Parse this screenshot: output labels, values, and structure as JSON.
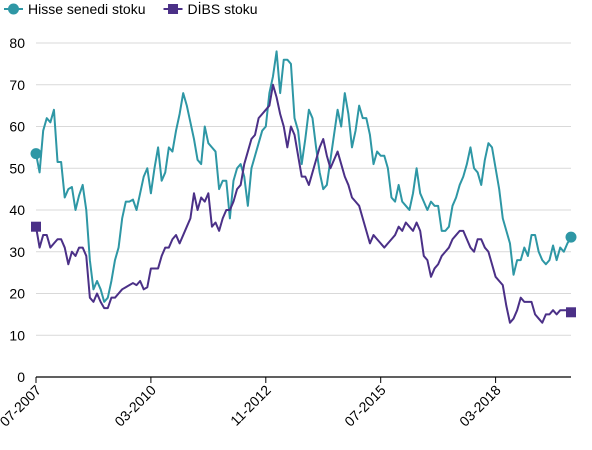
{
  "chart_data": {
    "type": "line",
    "title": "",
    "xlabel": "",
    "ylabel": "",
    "ylim": [
      0,
      80
    ],
    "yticks": [
      0,
      10,
      20,
      30,
      40,
      50,
      60,
      70,
      80
    ],
    "grid": true,
    "legend": "top-left",
    "x_tick_labels": [
      "07-2007",
      "03-2010",
      "11-2012",
      "07-2015",
      "03-2018"
    ],
    "x_tick_months": [
      0,
      32,
      64,
      96,
      128
    ],
    "series": [
      {
        "name": "Hisse senedi stoku",
        "color": "#2E97A5",
        "marker": "circle",
        "values": [
          53.5,
          49,
          59,
          62,
          61,
          64,
          51.5,
          51.5,
          43,
          45,
          45.5,
          40,
          43.5,
          46,
          40,
          28,
          21,
          23,
          21,
          18,
          19,
          23,
          28,
          31,
          38,
          42,
          42,
          42.5,
          40,
          44,
          48,
          50,
          44,
          50,
          55,
          47,
          49,
          55,
          54,
          59,
          63,
          68,
          65,
          61,
          57,
          52,
          51,
          60,
          56,
          55,
          54,
          45,
          47,
          47,
          38,
          47,
          50,
          51,
          48,
          41,
          50,
          53,
          56,
          59,
          60,
          68,
          72,
          78,
          68,
          76,
          76,
          75,
          62,
          59,
          51,
          57,
          64,
          62,
          55,
          49,
          45,
          46,
          52,
          58,
          64,
          60,
          68,
          63,
          55,
          59,
          65,
          62,
          62,
          58,
          51,
          54,
          53,
          53,
          50,
          43,
          42,
          46,
          42,
          41,
          40,
          44,
          50,
          44,
          42,
          40,
          42,
          41,
          41,
          35,
          35,
          36,
          41,
          43,
          46,
          48,
          51,
          55,
          50,
          49,
          46,
          52,
          56,
          55,
          50,
          45,
          38,
          35,
          32,
          24.5,
          28,
          28,
          31,
          29,
          34,
          34,
          30,
          28,
          27,
          28,
          31.5,
          28,
          31,
          30,
          32,
          33.5
        ]
      },
      {
        "name": "DİBS stoku",
        "color": "#4B3087",
        "marker": "square",
        "values": [
          36,
          31,
          34,
          34,
          31,
          32,
          33,
          33,
          31,
          27,
          30,
          29,
          31,
          31,
          29,
          19,
          18,
          20,
          18,
          16.5,
          16.5,
          19,
          19,
          20,
          21,
          21.5,
          22,
          22.5,
          22,
          23,
          21,
          21.5,
          26,
          26,
          26,
          29,
          31,
          31,
          33,
          34,
          32,
          34,
          36,
          38,
          44,
          40,
          43,
          42,
          44,
          36,
          37,
          35,
          38,
          40,
          40,
          42,
          45,
          46,
          51,
          54,
          57,
          58,
          62,
          63,
          64,
          65,
          70,
          67,
          63,
          60,
          55,
          60,
          58,
          53,
          48,
          48,
          46,
          49,
          52,
          55,
          57,
          53,
          50,
          52,
          54,
          51,
          48,
          46,
          43,
          42,
          41,
          38,
          35,
          32,
          34,
          33,
          32,
          31,
          32,
          33,
          34,
          36,
          35,
          37,
          36,
          35,
          37,
          35,
          29,
          28,
          24,
          26,
          27,
          29,
          30,
          31,
          33,
          34,
          35,
          35,
          33,
          31,
          30,
          33,
          33,
          31,
          30,
          27,
          24,
          23,
          22,
          17,
          13,
          14,
          16,
          19,
          18,
          18,
          18,
          15,
          14,
          13,
          15,
          15,
          16,
          15,
          16,
          16,
          16,
          15.5
        ]
      }
    ]
  }
}
